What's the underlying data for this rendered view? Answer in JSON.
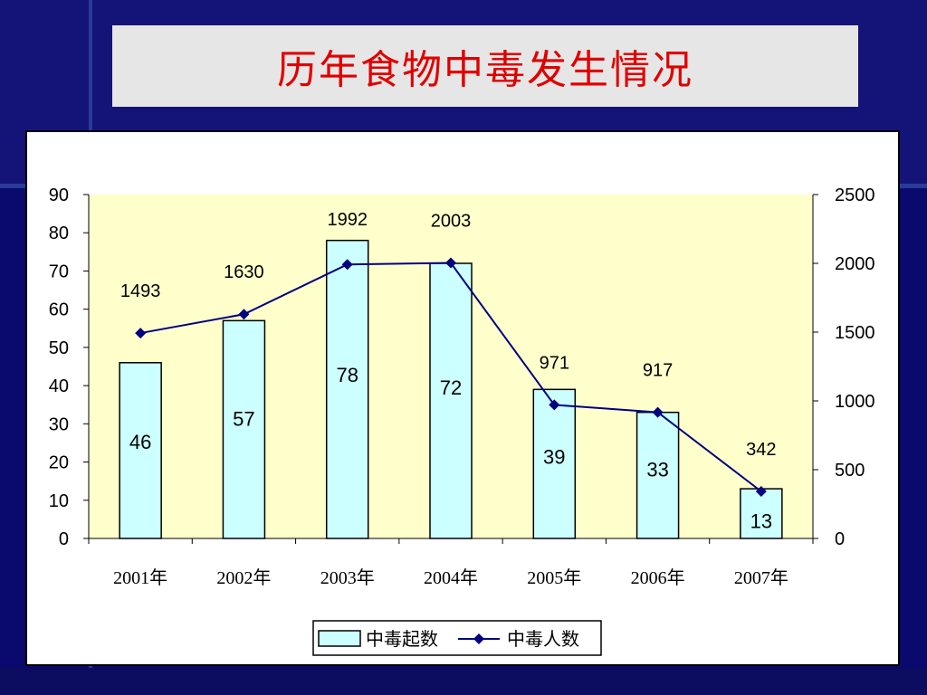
{
  "slide": {
    "title": "历年食物中毒发生情况"
  },
  "colors": {
    "background": "#0a0a6e",
    "title_text": "#e00000",
    "title_box": "#e6e6e6",
    "plot_area": "#ffffcc",
    "bar_fill": "#ccffff",
    "line": "#000080"
  },
  "chart_data": {
    "type": "bar",
    "categories": [
      "2001年",
      "2002年",
      "2003年",
      "2004年",
      "2005年",
      "2006年",
      "2007年"
    ],
    "series": [
      {
        "name": "中毒起数",
        "type": "bar",
        "axis": "left",
        "values": [
          46,
          57,
          78,
          72,
          39,
          33,
          13
        ],
        "data_labels": [
          "46",
          "57",
          "78",
          "72",
          "39",
          "33",
          "13"
        ]
      },
      {
        "name": "中毒人数",
        "type": "line",
        "axis": "right",
        "marker": "diamond",
        "values": [
          1493,
          1630,
          1992,
          2003,
          971,
          917,
          342
        ],
        "data_labels": [
          "1493",
          "1630",
          "1992",
          "2003",
          "971",
          "917",
          "342"
        ]
      }
    ],
    "y_left": {
      "ylim": [
        0,
        90
      ],
      "ticks": [
        0,
        10,
        20,
        30,
        40,
        50,
        60,
        70,
        80,
        90
      ],
      "tick_labels": [
        "0",
        "10",
        "20",
        "30",
        "40",
        "50",
        "60",
        "70",
        "80",
        "90"
      ]
    },
    "y_right": {
      "ylim": [
        0,
        2500
      ],
      "ticks": [
        0,
        500,
        1000,
        1500,
        2000,
        2500
      ],
      "tick_labels": [
        "0",
        "500",
        "1000",
        "1500",
        "2000",
        "2500"
      ]
    },
    "grid": false,
    "legend": {
      "placement": "bottom",
      "entries": [
        "中毒起数",
        "中毒人数"
      ]
    }
  }
}
